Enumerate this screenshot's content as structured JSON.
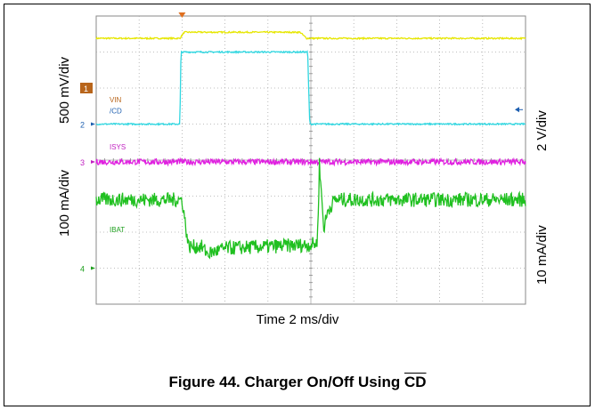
{
  "chart_data": {
    "type": "line",
    "title": "Figure 44. Charger On/Off Using",
    "title_overline_part": "CD",
    "xlabel": "Time 2 ms/div",
    "ylabel_left_top": "500 mV/div",
    "ylabel_left_bottom": "100 mA/div",
    "ylabel_right_top": "2 V/div",
    "ylabel_right_bottom": "10 mA/div",
    "x_divisions": 10,
    "y_divisions": 8,
    "x_unit": "ms",
    "grid": true,
    "series": [
      {
        "name": "VIN",
        "marker": "1",
        "color": "#e6e600",
        "label_color": "#b8651b",
        "x": [
          0,
          3.9,
          4.1,
          9.5,
          9.8,
          20
        ],
        "y_div": [
          -0.62,
          -0.62,
          -0.45,
          -0.45,
          -0.62,
          -0.62
        ],
        "noise_div": 0.02
      },
      {
        "name": "/CD",
        "marker": "2",
        "color": "#2fd6e0",
        "label_color": "#1e5fb0",
        "x": [
          0,
          3.9,
          3.95,
          9.85,
          9.95,
          20
        ],
        "y_div": [
          -3.0,
          -3.0,
          -1.0,
          -1.0,
          -3.0,
          -3.0
        ],
        "noise_div": 0.02
      },
      {
        "name": "ISYS",
        "marker": "3",
        "color": "#e020e0",
        "label_color": "#c020c0",
        "x": [
          0,
          20
        ],
        "y_div": [
          -4.05,
          -4.05
        ],
        "noise_div": 0.08
      },
      {
        "name": "IBAT",
        "marker": "4",
        "color": "#20c020",
        "label_color": "#20a020",
        "x": [
          0,
          4.0,
          4.3,
          4.9,
          5.2,
          6.0,
          10.0,
          10.3,
          10.4,
          10.6,
          10.8,
          11.1,
          20
        ],
        "y_div": [
          -5.1,
          -5.1,
          -6.4,
          -6.4,
          -6.6,
          -6.45,
          -6.35,
          -6.3,
          -4.1,
          -5.9,
          -5.4,
          -5.1,
          -5.1
        ],
        "noise_div": 0.2
      }
    ],
    "trigger_marker_x": 4.0,
    "right_marker_y_div": -2.6
  }
}
